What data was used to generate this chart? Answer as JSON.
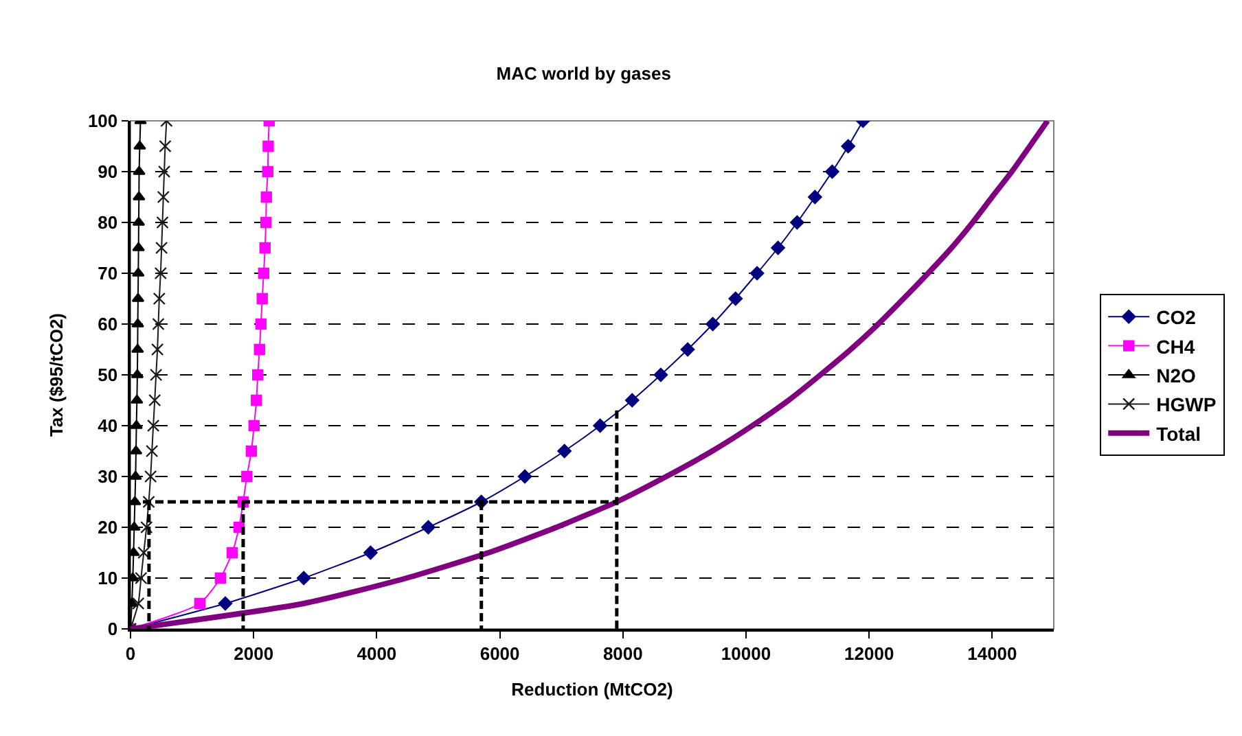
{
  "chart_data": {
    "type": "line",
    "title": "MAC world by gases",
    "xlabel": "Reduction (MtCO2)",
    "ylabel": "Tax ($95/tCO2)",
    "xlim": [
      0,
      15000
    ],
    "xticks": [
      0,
      2000,
      4000,
      6000,
      8000,
      10000,
      12000,
      14000
    ],
    "ylim": [
      0,
      100
    ],
    "yticks": [
      0,
      10,
      20,
      30,
      40,
      50,
      60,
      70,
      80,
      90,
      100
    ],
    "grid": "y",
    "legend": "right",
    "series": [
      {
        "name": "CO2",
        "color": "#000080",
        "marker": "diamond",
        "x": [
          0,
          1540,
          2815,
          3900,
          4838,
          5700,
          6407,
          7050,
          7630,
          8150,
          8615,
          9052,
          9460,
          9830,
          10180,
          10520,
          10830,
          11120,
          11400,
          11660,
          11900
        ],
        "values": [
          0,
          5,
          10,
          15,
          20,
          25,
          30,
          35,
          40,
          45,
          50,
          55,
          60,
          65,
          70,
          75,
          80,
          85,
          90,
          95,
          100
        ]
      },
      {
        "name": "CH4",
        "color": "#ff00ff",
        "marker": "square",
        "x": [
          0,
          1126,
          1460,
          1652,
          1763,
          1830,
          1890,
          1963,
          2007,
          2045,
          2067,
          2096,
          2118,
          2140,
          2163,
          2185,
          2200,
          2207,
          2230,
          2237,
          2252
        ],
        "values": [
          0,
          5,
          10,
          15,
          20,
          25,
          30,
          35,
          40,
          45,
          50,
          55,
          60,
          65,
          70,
          75,
          80,
          85,
          90,
          95,
          100
        ]
      },
      {
        "name": "N2O",
        "color": "#000000",
        "marker": "triangle",
        "x": [
          0,
          22,
          37,
          49,
          60,
          71,
          82,
          89,
          96,
          104,
          111,
          115,
          118,
          122,
          126,
          130,
          133,
          137,
          140,
          150,
          162
        ],
        "values": [
          0,
          5,
          10,
          15,
          20,
          25,
          30,
          35,
          40,
          45,
          50,
          55,
          60,
          65,
          70,
          75,
          80,
          85,
          90,
          95,
          100
        ]
      },
      {
        "name": "HGWP",
        "color": "#1a1a1a",
        "marker": "cross",
        "x": [
          0,
          126,
          171,
          215,
          260,
          296,
          326,
          348,
          370,
          393,
          415,
          437,
          452,
          467,
          489,
          504,
          519,
          533,
          548,
          563,
          585
        ],
        "values": [
          0,
          5,
          10,
          15,
          20,
          25,
          30,
          35,
          40,
          45,
          50,
          55,
          60,
          65,
          70,
          75,
          80,
          85,
          90,
          95,
          100
        ]
      },
      {
        "name": "Total",
        "color": "#800080",
        "marker": "none",
        "x": [
          0,
          2814,
          4483,
          5816,
          6921,
          7897,
          8705,
          9450,
          10103,
          10692,
          11208,
          11700,
          12148,
          12559,
          12958,
          13339,
          13682,
          13997,
          14318,
          14610,
          14899
        ],
        "values": [
          0,
          5,
          10,
          15,
          20,
          25,
          30,
          35,
          40,
          45,
          50,
          55,
          60,
          65,
          70,
          75,
          80,
          85,
          90,
          95,
          100
        ]
      },
      {
        "color": "#000000",
        "marker": "none",
        "line_style": "dashed",
        "x": [
          0,
          7900
        ],
        "values": [
          25,
          25
        ]
      },
      {
        "color": "#000000",
        "marker": "none",
        "line_style": "dashed",
        "x": [
          300,
          300
        ],
        "values": [
          25,
          0
        ]
      },
      {
        "color": "#000000",
        "marker": "none",
        "line_style": "dashed",
        "x": [
          1830,
          1830
        ],
        "values": [
          25,
          0
        ]
      },
      {
        "color": "#000000",
        "marker": "none",
        "line_style": "dashed",
        "x": [
          5700,
          5700
        ],
        "values": [
          25,
          0
        ]
      },
      {
        "color": "#000000",
        "marker": "none",
        "line_style": "dashed",
        "x": [
          7900,
          7900
        ],
        "values": [
          43,
          0
        ]
      }
    ]
  }
}
